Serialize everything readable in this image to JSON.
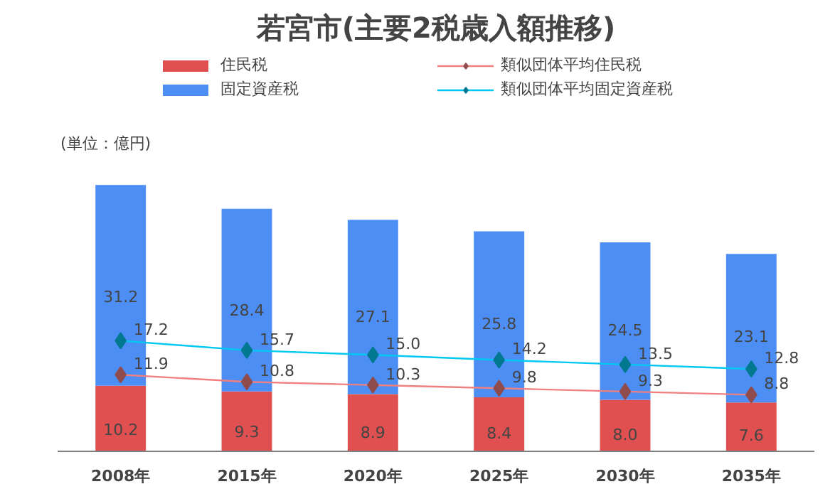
{
  "chart_data": {
    "type": "bar",
    "title": "若宮市(主要2税歳入額推移)",
    "stacked": true,
    "categories": [
      "2008年",
      "2015年",
      "2020年",
      "2025年",
      "2030年",
      "2035年"
    ],
    "series": [
      {
        "name": "住民税",
        "color": "#e05050",
        "values": [
          10.2,
          9.3,
          8.9,
          8.4,
          8.0,
          7.6
        ],
        "value_labels": [
          "10.2",
          "9.3",
          "8.9",
          "8.4",
          "8.0",
          "7.6"
        ]
      },
      {
        "name": "固定資産税",
        "color": "#4d8ef5",
        "values": [
          31.2,
          28.4,
          27.1,
          25.8,
          24.5,
          23.1
        ]
      },
      {
        "name": "類似団体平均住民税",
        "type": "line",
        "color": "#f08080",
        "values": [
          11.9,
          10.8,
          10.3,
          9.8,
          9.3,
          8.8
        ]
      },
      {
        "name": "類似団体平均固定資産税",
        "type": "line",
        "color": "#00c8f0",
        "values": [
          17.2,
          15.7,
          15.0,
          14.2,
          13.5,
          12.8
        ],
        "value_labels": [
          "17.2",
          "15.7",
          "15.0",
          "14.2",
          "13.5",
          "12.8"
        ]
      }
    ],
    "data_labels": true,
    "legend": "top",
    "marker": "diamond",
    "annotations": [
      "(単位：億円)"
    ]
  }
}
